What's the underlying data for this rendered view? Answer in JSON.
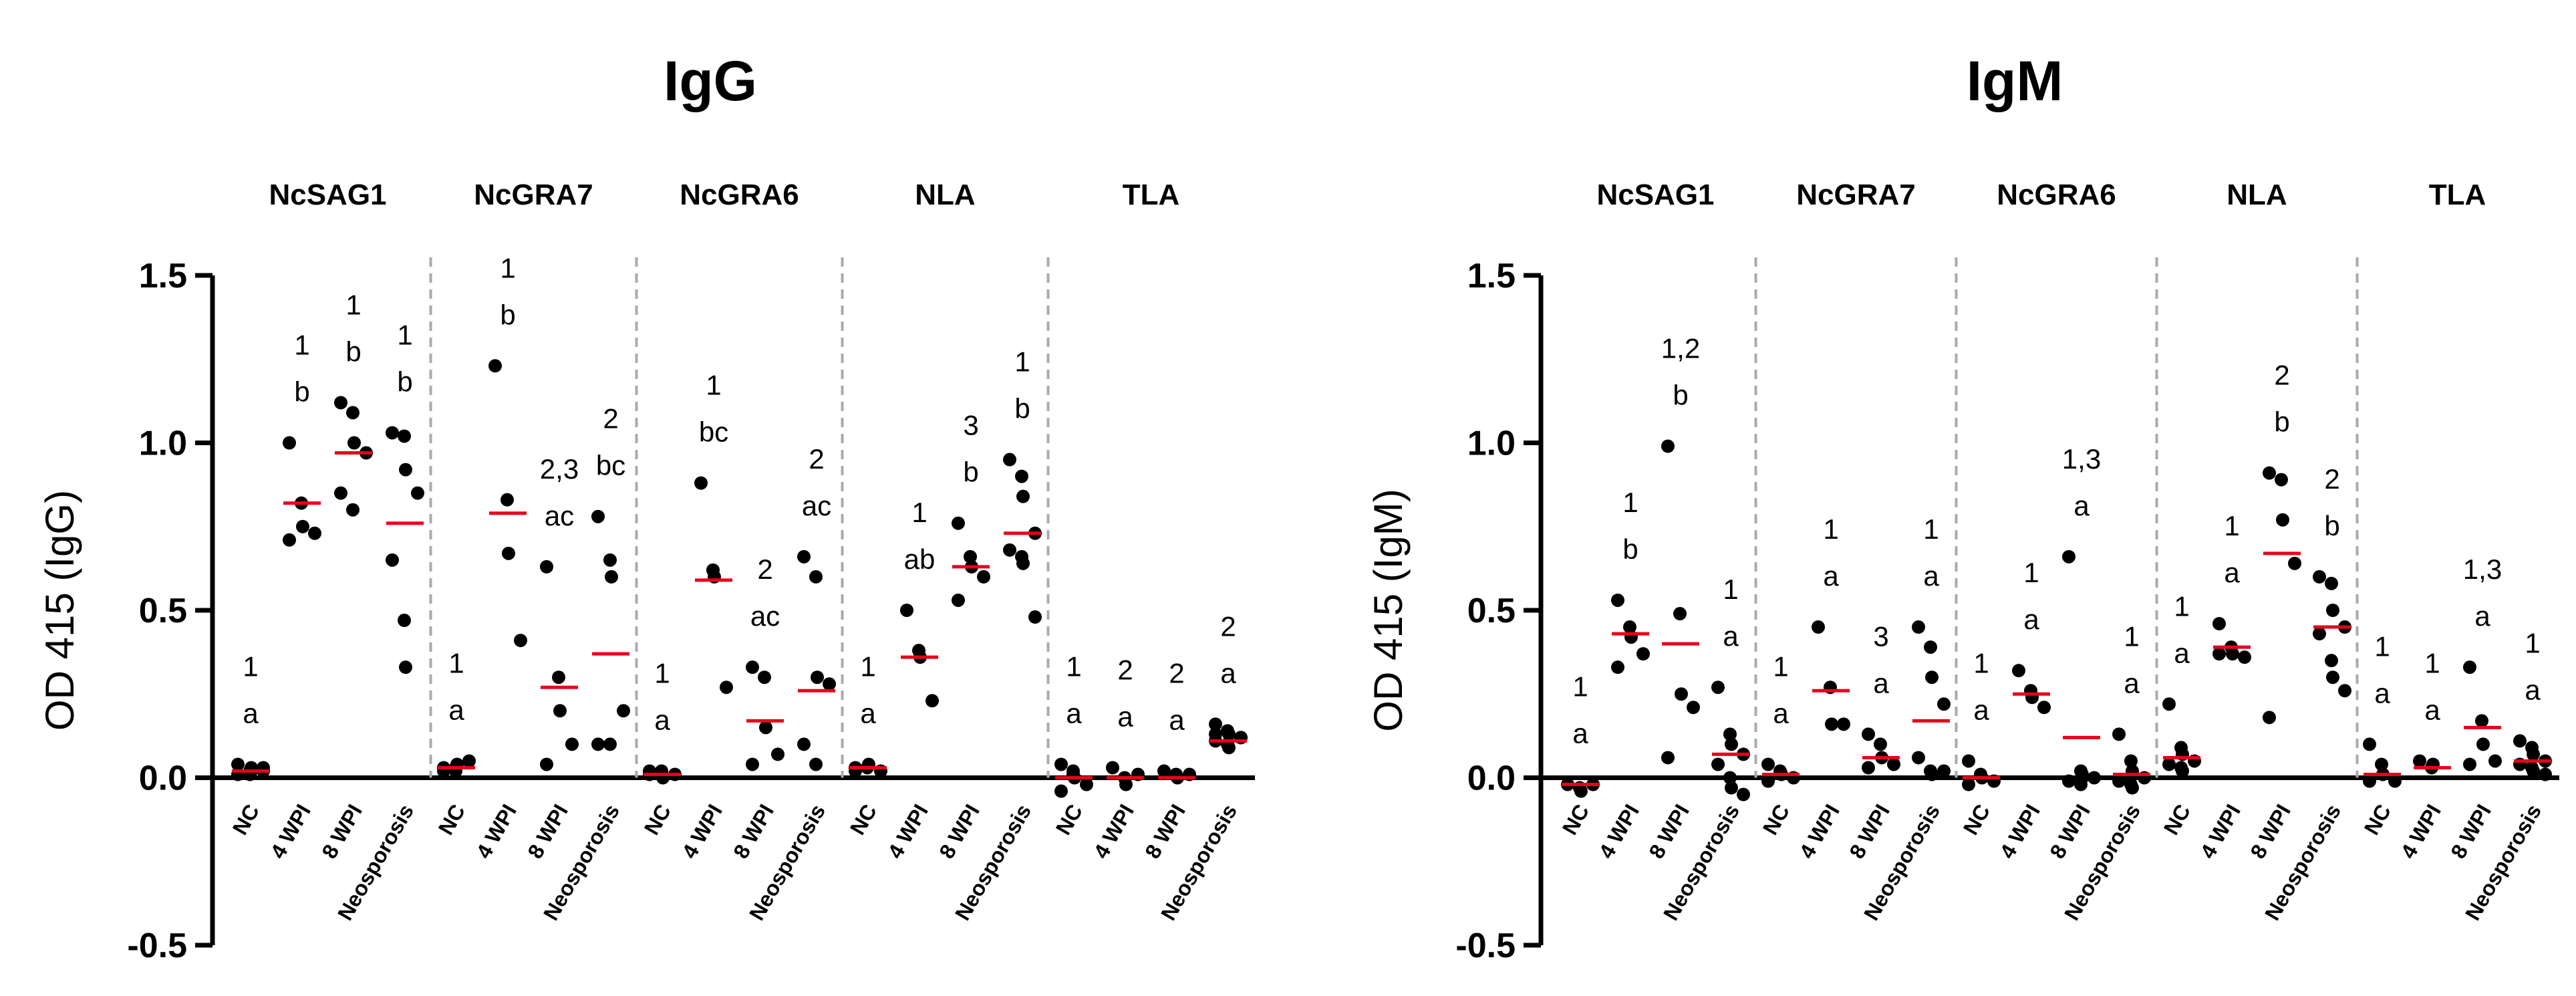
{
  "chart_data": [
    {
      "type": "scatter",
      "title": "IgG",
      "ylabel": "OD 415 (IgG)",
      "ylim": [
        -0.5,
        1.5
      ],
      "yticks": [
        -0.5,
        0.0,
        0.5,
        1.0,
        1.5
      ],
      "ytick_labels": [
        "-0.5",
        "0.0",
        "0.5",
        "1.0",
        "1.5"
      ],
      "categories": [
        "NC",
        "4 WPI",
        "8 WPI",
        "Neosporosis"
      ],
      "colors": {
        "points": "#000000",
        "mean": "#e8001c",
        "separator": "#aaaaaa"
      },
      "groups": [
        {
          "antigen": "NcSAG1",
          "cols": [
            {
              "sig": [
                "1",
                "a"
              ],
              "mean": 0.02,
              "points": [
                0.01,
                0.02,
                0.03,
                0.02,
                0.04,
                0.01,
                0.02,
                0.03
              ]
            },
            {
              "sig": [
                "1",
                "b"
              ],
              "mean": 0.82,
              "points": [
                1.0,
                0.82,
                0.75,
                0.73,
                0.71
              ]
            },
            {
              "sig": [
                "1",
                "b"
              ],
              "mean": 0.97,
              "points": [
                1.12,
                1.09,
                1.0,
                0.97,
                0.85,
                0.8
              ]
            },
            {
              "sig": [
                "1",
                "b"
              ],
              "mean": 0.76,
              "points": [
                1.03,
                1.02,
                0.92,
                0.85,
                0.65,
                0.47,
                0.33
              ]
            }
          ]
        },
        {
          "antigen": "NcGRA7",
          "cols": [
            {
              "sig": [
                "1",
                "a"
              ],
              "mean": 0.03,
              "points": [
                0.02,
                0.03,
                0.04,
                0.05,
                0.03,
                0.02
              ]
            },
            {
              "sig": [
                "1",
                "b"
              ],
              "mean": 0.79,
              "points": [
                1.23,
                0.83,
                0.67,
                0.41
              ]
            },
            {
              "sig": [
                "2,3",
                "ac"
              ],
              "mean": 0.27,
              "points": [
                0.63,
                0.3,
                0.2,
                0.1,
                0.04
              ]
            },
            {
              "sig": [
                "2",
                "bc"
              ],
              "mean": 0.37,
              "points": [
                0.78,
                0.65,
                0.6,
                0.2,
                0.1,
                0.1
              ]
            }
          ]
        },
        {
          "antigen": "NcGRA6",
          "cols": [
            {
              "sig": [
                "1",
                "a"
              ],
              "mean": 0.01,
              "points": [
                0.01,
                0.02,
                0.0,
                0.01,
                0.02,
                0.01
              ]
            },
            {
              "sig": [
                "1",
                "bc"
              ],
              "mean": 0.59,
              "points": [
                0.88,
                0.62,
                0.6,
                0.27
              ]
            },
            {
              "sig": [
                "2",
                "ac"
              ],
              "mean": 0.17,
              "points": [
                0.33,
                0.3,
                0.15,
                0.07,
                0.04
              ]
            },
            {
              "sig": [
                "2",
                "ac"
              ],
              "mean": 0.26,
              "points": [
                0.66,
                0.6,
                0.3,
                0.28,
                0.1,
                0.04
              ]
            }
          ]
        },
        {
          "antigen": "NLA",
          "cols": [
            {
              "sig": [
                "1",
                "a"
              ],
              "mean": 0.03,
              "points": [
                0.02,
                0.03,
                0.04,
                0.02,
                0.03
              ]
            },
            {
              "sig": [
                "1",
                "ab"
              ],
              "mean": 0.36,
              "points": [
                0.5,
                0.38,
                0.36,
                0.23
              ]
            },
            {
              "sig": [
                "3",
                "b"
              ],
              "mean": 0.63,
              "points": [
                0.76,
                0.66,
                0.63,
                0.6,
                0.53
              ]
            },
            {
              "sig": [
                "1",
                "b"
              ],
              "mean": 0.73,
              "points": [
                0.95,
                0.9,
                0.84,
                0.73,
                0.68,
                0.66,
                0.64,
                0.48
              ]
            }
          ]
        },
        {
          "antigen": "TLA",
          "cols": [
            {
              "sig": [
                "1",
                "a"
              ],
              "mean": 0.0,
              "points": [
                0.04,
                0.02,
                0.0,
                -0.02,
                -0.04,
                0.01
              ]
            },
            {
              "sig": [
                "2",
                "a"
              ],
              "mean": 0.0,
              "points": [
                0.03,
                0.0,
                -0.02,
                0.01
              ]
            },
            {
              "sig": [
                "2",
                "a"
              ],
              "mean": 0.0,
              "points": [
                0.02,
                0.01,
                0.0,
                0.01
              ]
            },
            {
              "sig": [
                "2",
                "a"
              ],
              "mean": 0.11,
              "points": [
                0.16,
                0.14,
                0.13,
                0.12,
                0.11,
                0.1,
                0.09,
                0.12,
                0.13
              ]
            }
          ]
        }
      ]
    },
    {
      "type": "scatter",
      "title": "IgM",
      "ylabel": "OD 415 (IgM)",
      "ylim": [
        -0.5,
        1.5
      ],
      "yticks": [
        -0.5,
        0.0,
        0.5,
        1.0,
        1.5
      ],
      "ytick_labels": [
        "-0.5",
        "0.0",
        "0.5",
        "1.0",
        "1.5"
      ],
      "categories": [
        "NC",
        "4 WPI",
        "8 WPI",
        "Neosporosis"
      ],
      "colors": {
        "points": "#000000",
        "mean": "#e8001c",
        "separator": "#aaaaaa"
      },
      "groups": [
        {
          "antigen": "NcSAG1",
          "cols": [
            {
              "sig": [
                "1",
                "a"
              ],
              "mean": -0.02,
              "points": [
                -0.02,
                -0.03,
                -0.04,
                -0.02
              ]
            },
            {
              "sig": [
                "1",
                "b"
              ],
              "mean": 0.43,
              "points": [
                0.53,
                0.45,
                0.42,
                0.37,
                0.33
              ]
            },
            {
              "sig": [
                "1,2",
                "b"
              ],
              "mean": 0.4,
              "points": [
                0.99,
                0.49,
                0.25,
                0.21,
                0.06
              ]
            },
            {
              "sig": [
                "1",
                "a"
              ],
              "mean": 0.07,
              "points": [
                0.27,
                0.13,
                0.1,
                0.07,
                0.04,
                0.0,
                -0.03,
                -0.05
              ]
            }
          ]
        },
        {
          "antigen": "NcGRA7",
          "cols": [
            {
              "sig": [
                "1",
                "a"
              ],
              "mean": 0.01,
              "points": [
                0.04,
                0.02,
                0.01,
                0.0,
                -0.01
              ]
            },
            {
              "sig": [
                "1",
                "a"
              ],
              "mean": 0.26,
              "points": [
                0.45,
                0.27,
                0.16,
                0.16
              ]
            },
            {
              "sig": [
                "3",
                "a"
              ],
              "mean": 0.06,
              "points": [
                0.13,
                0.1,
                0.06,
                0.04,
                0.03
              ]
            },
            {
              "sig": [
                "1",
                "a"
              ],
              "mean": 0.17,
              "points": [
                0.45,
                0.39,
                0.3,
                0.22,
                0.06,
                0.02,
                0.01,
                0.02
              ]
            }
          ]
        },
        {
          "antigen": "NcGRA6",
          "cols": [
            {
              "sig": [
                "1",
                "a"
              ],
              "mean": 0.0,
              "points": [
                0.05,
                0.01,
                0.0,
                -0.01,
                -0.02
              ]
            },
            {
              "sig": [
                "1",
                "a"
              ],
              "mean": 0.25,
              "points": [
                0.32,
                0.26,
                0.24,
                0.21
              ]
            },
            {
              "sig": [
                "1,3",
                "a"
              ],
              "mean": 0.12,
              "points": [
                0.66,
                0.02,
                0.01,
                0.0,
                -0.01,
                -0.02,
                0.0
              ]
            },
            {
              "sig": [
                "1",
                "a"
              ],
              "mean": 0.01,
              "points": [
                0.13,
                0.05,
                0.02,
                0.0,
                -0.01,
                -0.02,
                -0.03
              ]
            }
          ]
        },
        {
          "antigen": "NLA",
          "cols": [
            {
              "sig": [
                "1",
                "a"
              ],
              "mean": 0.06,
              "points": [
                0.22,
                0.09,
                0.07,
                0.05,
                0.04,
                0.03,
                0.02
              ]
            },
            {
              "sig": [
                "1",
                "a"
              ],
              "mean": 0.39,
              "points": [
                0.46,
                0.39,
                0.37,
                0.36,
                0.37
              ]
            },
            {
              "sig": [
                "2",
                "b"
              ],
              "mean": 0.67,
              "points": [
                0.91,
                0.89,
                0.77,
                0.64,
                0.18
              ]
            },
            {
              "sig": [
                "2",
                "b"
              ],
              "mean": 0.45,
              "points": [
                0.6,
                0.58,
                0.5,
                0.45,
                0.43,
                0.35,
                0.3,
                0.26
              ]
            }
          ]
        },
        {
          "antigen": "TLA",
          "cols": [
            {
              "sig": [
                "1",
                "a"
              ],
              "mean": 0.01,
              "points": [
                0.1,
                0.04,
                0.01,
                -0.01,
                -0.01
              ]
            },
            {
              "sig": [
                "1",
                "a"
              ],
              "mean": 0.03,
              "points": [
                0.05,
                0.03,
                0.04
              ]
            },
            {
              "sig": [
                "1,3",
                "a"
              ],
              "mean": 0.15,
              "points": [
                0.33,
                0.17,
                0.1,
                0.05,
                0.04
              ]
            },
            {
              "sig": [
                "1",
                "a"
              ],
              "mean": 0.05,
              "points": [
                0.11,
                0.09,
                0.07,
                0.05,
                0.04,
                0.03,
                0.02,
                0.01
              ]
            }
          ]
        }
      ]
    }
  ]
}
